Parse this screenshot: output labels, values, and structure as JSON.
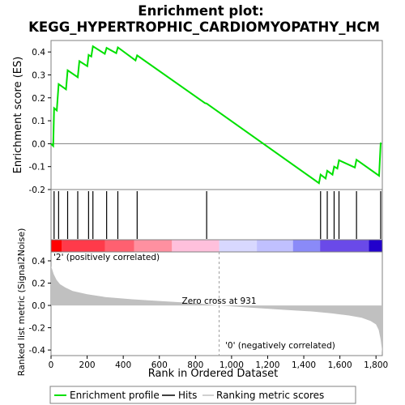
{
  "chart_data": {
    "type": "line",
    "title_line1": "Enrichment plot:",
    "title_line2": "KEGG_HYPERTROPHIC_CARDIOMYOPATHY_HCM",
    "es_panel": {
      "ylabel": "Enrichment score (ES)",
      "ylim": [
        -0.2,
        0.45
      ],
      "yticks": [
        -0.2,
        -0.1,
        0.0,
        0.1,
        0.2,
        0.3,
        0.4
      ],
      "ytick_labels": [
        "-0.2",
        "-0.1",
        "0.0",
        "0.1",
        "0.2",
        "0.3",
        "0.4"
      ],
      "line_color": "#00e000",
      "series": [
        {
          "x": [
            0,
            12,
            17,
            32,
            42,
            83,
            92,
            148,
            157,
            201,
            208,
            223,
            232,
            298,
            308,
            361,
            370,
            468,
            477,
            853,
            862,
            1484,
            1493,
            1521,
            1530,
            1559,
            1568,
            1586,
            1595,
            1683,
            1692,
            1817,
            1826
          ],
          "y": [
            0.0,
            -0.01,
            0.155,
            0.145,
            0.26,
            0.237,
            0.32,
            0.29,
            0.36,
            0.338,
            0.387,
            0.38,
            0.425,
            0.392,
            0.418,
            0.395,
            0.42,
            0.363,
            0.385,
            0.177,
            0.175,
            -0.172,
            -0.135,
            -0.152,
            -0.118,
            -0.135,
            -0.1,
            -0.108,
            -0.072,
            -0.104,
            -0.07,
            -0.14,
            0.005
          ]
        }
      ]
    },
    "hits": [
      17,
      42,
      92,
      148,
      208,
      232,
      308,
      370,
      477,
      862,
      1493,
      1530,
      1568,
      1595,
      1692,
      1826
    ],
    "heatmap_segments": [
      {
        "x0": 0,
        "x1": 60,
        "color": "#ff0000"
      },
      {
        "x0": 60,
        "x1": 300,
        "color": "#ff3a4a"
      },
      {
        "x0": 300,
        "x1": 460,
        "color": "#ff6070"
      },
      {
        "x0": 460,
        "x1": 670,
        "color": "#ff90a0"
      },
      {
        "x0": 670,
        "x1": 931,
        "color": "#ffc0dc"
      },
      {
        "x0": 931,
        "x1": 1140,
        "color": "#d8d8ff"
      },
      {
        "x0": 1140,
        "x1": 1340,
        "color": "#c0c0ff"
      },
      {
        "x0": 1340,
        "x1": 1490,
        "color": "#8a8af8"
      },
      {
        "x0": 1490,
        "x1": 1760,
        "color": "#6a4ae8"
      },
      {
        "x0": 1760,
        "x1": 1835,
        "color": "#2200cc"
      }
    ],
    "metric_panel": {
      "ylabel": "Ranked list metric (Signal2Noise)",
      "ylim": [
        -0.45,
        0.48
      ],
      "yticks": [
        -0.4,
        -0.2,
        0.0,
        0.2,
        0.4
      ],
      "ytick_labels": [
        "-0.4",
        "-0.2",
        "0.0",
        "0.2",
        "0.4"
      ],
      "fill_color": "#c0c0c0",
      "profile": {
        "x": [
          0,
          5,
          15,
          30,
          50,
          80,
          120,
          200,
          300,
          450,
          600,
          800,
          931,
          1100,
          1300,
          1450,
          1550,
          1650,
          1720,
          1770,
          1800,
          1815,
          1825,
          1835
        ],
        "y": [
          0.35,
          0.33,
          0.28,
          0.23,
          0.19,
          0.16,
          0.13,
          0.1,
          0.075,
          0.055,
          0.04,
          0.02,
          0.0,
          -0.02,
          -0.04,
          -0.055,
          -0.07,
          -0.09,
          -0.11,
          -0.14,
          -0.17,
          -0.22,
          -0.3,
          -0.42
        ]
      },
      "zero_cross_rank": 931,
      "zero_cross_label": "Zero cross at 931",
      "pos_label": "'2' (positively correlated)",
      "neg_label": "'0' (negatively correlated)",
      "pos_label_color": "#cc0000",
      "neg_label_color": "#0000cc"
    },
    "xaxis": {
      "xlabel": "Rank in Ordered Dataset",
      "xlim": [
        0,
        1835
      ],
      "xticks": [
        0,
        200,
        400,
        600,
        800,
        1000,
        1200,
        1400,
        1600,
        1800
      ],
      "xtick_labels": [
        "0",
        "200",
        "400",
        "600",
        "800",
        "1,000",
        "1,200",
        "1,400",
        "1,600",
        "1,800"
      ]
    },
    "legend": {
      "placement": "bottom",
      "items": [
        {
          "label": "Enrichment profile",
          "color": "#00e000"
        },
        {
          "label": "Hits",
          "color": "#000000"
        },
        {
          "label": "Ranking metric scores",
          "color": "#c0c0c0"
        }
      ]
    }
  }
}
